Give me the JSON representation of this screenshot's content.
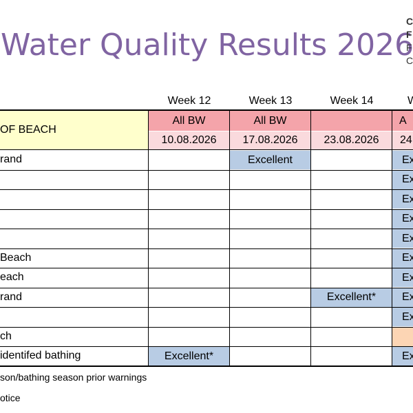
{
  "title": "Water Quality Results 2026",
  "corner": [
    "C",
    "F",
    "F",
    "C"
  ],
  "weeks": [
    "Week 12",
    "Week 13",
    "Week 14",
    "W"
  ],
  "header": {
    "beach_label": "OF BEACH",
    "bw": [
      "All BW",
      "All BW",
      "",
      "A"
    ],
    "dates": [
      "10.08.2026",
      "17.08.2026",
      "23.08.2026",
      "24"
    ]
  },
  "rows": [
    {
      "name": "rand",
      "w12": "",
      "w13": "Excellent",
      "w14": "",
      "w15": "Ex"
    },
    {
      "name": "",
      "w12": "",
      "w13": "",
      "w14": "",
      "w15": "Ex"
    },
    {
      "name": "",
      "w12": "",
      "w13": "",
      "w14": "",
      "w15": "Ex"
    },
    {
      "name": "",
      "w12": "",
      "w13": "",
      "w14": "",
      "w15": "Ex"
    },
    {
      "name": "",
      "w12": "",
      "w13": "",
      "w14": "",
      "w15": "Ex"
    },
    {
      "name": "Beach",
      "w12": "",
      "w13": "",
      "w14": "",
      "w15": "Ex"
    },
    {
      "name": "each",
      "w12": "",
      "w13": "",
      "w14": "",
      "w15": "Ex"
    },
    {
      "name": "rand",
      "w12": "",
      "w13": "",
      "w14": "Excellent*",
      "w15": "Ex"
    },
    {
      "name": "",
      "w12": "",
      "w13": "",
      "w14": "",
      "w15": "Ex"
    },
    {
      "name": "ch",
      "w12": "",
      "w13": "",
      "w14": "",
      "w15": ""
    },
    {
      "name": "identifed bathing",
      "w12": "Excellent*",
      "w13": "",
      "w14": "",
      "w15": "Ex"
    }
  ],
  "notes": [
    "son/bathing season prior warnings",
    "otice"
  ],
  "colors": {
    "title": "#8064a2",
    "header_name_bg": "#ffffcc",
    "bw_bg": "#f4a4aa",
    "date_bg": "#fadadd",
    "excellent_bg": "#b8cce4",
    "peach_bg": "#fcd5b4"
  }
}
